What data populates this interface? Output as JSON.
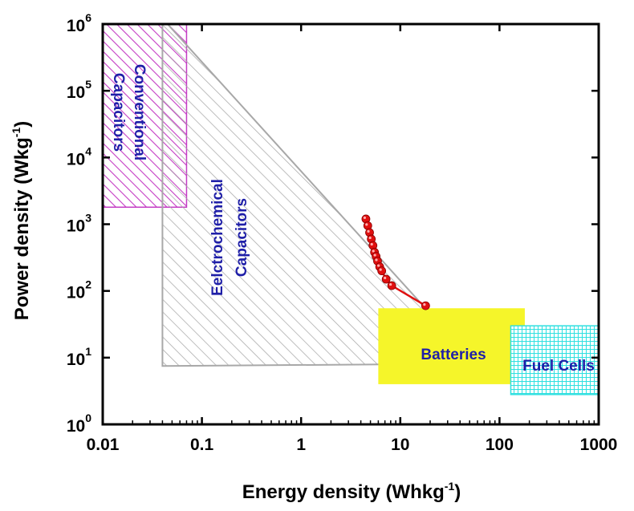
{
  "chart_data": {
    "type": "scatter",
    "title": "",
    "xlabel": {
      "main": "Energy density (Whkg",
      "sup": "-1",
      "close": ")"
    },
    "ylabel": {
      "main": "Power density (Wkg",
      "sup": "-1",
      "close": ")"
    },
    "x_scale": "log",
    "y_scale": "log",
    "xlim": [
      0.01,
      1000
    ],
    "ylim": [
      1,
      1000000
    ],
    "grid": false,
    "x_ticks": [
      {
        "value": 0.01,
        "label": "0.01"
      },
      {
        "value": 0.1,
        "label": "0.1"
      },
      {
        "value": 1,
        "label": "1"
      },
      {
        "value": 10,
        "label": "10"
      },
      {
        "value": 100,
        "label": "100"
      },
      {
        "value": 1000,
        "label": "1000"
      }
    ],
    "y_ticks": [
      {
        "value": 1,
        "base": "10",
        "exp": "0"
      },
      {
        "value": 10,
        "base": "10",
        "exp": "1"
      },
      {
        "value": 100,
        "base": "10",
        "exp": "2"
      },
      {
        "value": 1000,
        "base": "10",
        "exp": "3"
      },
      {
        "value": 10000,
        "base": "10",
        "exp": "4"
      },
      {
        "value": 100000,
        "base": "10",
        "exp": "5"
      },
      {
        "value": 1000000,
        "base": "10",
        "exp": "6"
      }
    ],
    "regions": [
      {
        "label_lines": [
          "Conventional",
          "Capacitors"
        ],
        "shape": "rect",
        "x": [
          0.01,
          0.07
        ],
        "y": [
          1800,
          1000000
        ],
        "fill": "hatch-diagonal",
        "color": "#c43cc4",
        "label_rotation": 90
      },
      {
        "label_lines": [
          "Eelctrochemical",
          "Capacitors"
        ],
        "shape": "polygon",
        "points": [
          [
            0.04,
            7.5
          ],
          [
            0.04,
            1000000
          ],
          [
            0.045,
            1000000
          ],
          [
            17,
            60
          ],
          [
            17,
            8
          ]
        ],
        "fill": "hatch-diagonal",
        "color": "#a8a8a8",
        "label_rotation": -90
      },
      {
        "label_lines": [
          "Batteries"
        ],
        "shape": "rect",
        "x": [
          6,
          180
        ],
        "y": [
          4,
          55
        ],
        "fill": "solid",
        "color": "#f5f52a",
        "label_rotation": 0
      },
      {
        "label_lines": [
          "Fuel Cells"
        ],
        "shape": "rect",
        "x": [
          130,
          1000
        ],
        "y": [
          2.8,
          30
        ],
        "fill": "grid",
        "color": "#2ee0e0",
        "label_rotation": 0
      }
    ],
    "series": [
      {
        "color": "#e01010",
        "marker": "circle",
        "x": [
          4.5,
          4.7,
          4.9,
          5.1,
          5.3,
          5.5,
          5.7,
          5.9,
          6.2,
          6.5,
          7.2,
          8.2,
          18
        ],
        "y": [
          1200,
          950,
          750,
          600,
          480,
          380,
          330,
          280,
          230,
          200,
          150,
          120,
          60
        ]
      }
    ]
  }
}
